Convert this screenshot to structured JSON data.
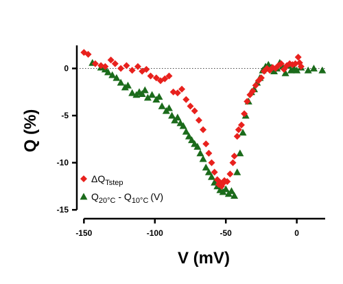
{
  "chart_data": {
    "type": "scatter",
    "xlabel": "V (mV)",
    "ylabel": "Q (%)",
    "xlim": [
      -155,
      20
    ],
    "ylim": [
      -15.5,
      2.3
    ],
    "xticks": [
      -150,
      -100,
      -50,
      0
    ],
    "yticks": [
      0,
      -5,
      -10,
      -15
    ],
    "zero_line": "dotted",
    "legend_position": "lower-left",
    "series": [
      {
        "name": "ΔQ",
        "name_sub": "Tstep",
        "color": "#e8211d",
        "marker": "diamond",
        "points": [
          [
            -150,
            1.7
          ],
          [
            -147,
            1.5
          ],
          [
            -142,
            0.5
          ],
          [
            -138,
            0.3
          ],
          [
            -135,
            0.2
          ],
          [
            -131,
            0.9
          ],
          [
            -128,
            0.5
          ],
          [
            -124,
            0.0
          ],
          [
            -120,
            0.3
          ],
          [
            -116,
            -0.2
          ],
          [
            -112,
            0.2
          ],
          [
            -109,
            -0.3
          ],
          [
            -106,
            -0.1
          ],
          [
            -103,
            -0.8
          ],
          [
            -99,
            -1.0
          ],
          [
            -96,
            -1.3
          ],
          [
            -93,
            -1.1
          ],
          [
            -90,
            -0.8
          ],
          [
            -87,
            -2.5
          ],
          [
            -84,
            -2.6
          ],
          [
            -81,
            -2.2
          ],
          [
            -78,
            -3.3
          ],
          [
            -75,
            -4.0
          ],
          [
            -72,
            -4.5
          ],
          [
            -69,
            -5.5
          ],
          [
            -66,
            -6.5
          ],
          [
            -64,
            -8.0
          ],
          [
            -62,
            -9.0
          ],
          [
            -60,
            -10.0
          ],
          [
            -58,
            -11.0
          ],
          [
            -56,
            -11.8
          ],
          [
            -55,
            -12.3
          ],
          [
            -54,
            -12.1
          ],
          [
            -53,
            -12.5
          ],
          [
            -52,
            -12.2
          ],
          [
            -51,
            -11.9
          ],
          [
            -49,
            -12.0
          ],
          [
            -47,
            -11.2
          ],
          [
            -45,
            -10.0
          ],
          [
            -44,
            -9.3
          ],
          [
            -42,
            -7.2
          ],
          [
            -41,
            -6.5
          ],
          [
            -39,
            -6.0
          ],
          [
            -37,
            -4.8
          ],
          [
            -35,
            -3.5
          ],
          [
            -33,
            -2.8
          ],
          [
            -31,
            -2.4
          ],
          [
            -29,
            -1.8
          ],
          [
            -27,
            -1.3
          ],
          [
            -25,
            -1.0
          ],
          [
            -23,
            -0.3
          ],
          [
            -21,
            0.0
          ],
          [
            -19,
            -0.2
          ],
          [
            -17,
            0.1
          ],
          [
            -15,
            0.0
          ],
          [
            -13,
            0.3
          ],
          [
            -11,
            0.5
          ],
          [
            -9,
            -0.1
          ],
          [
            -7,
            0.3
          ],
          [
            -5,
            0.5
          ],
          [
            -3,
            0.4
          ],
          [
            -1,
            0.5
          ],
          [
            1,
            1.2
          ],
          [
            2,
            0.6
          ],
          [
            3,
            0.2
          ]
        ]
      },
      {
        "name": "Q",
        "name_sub": "20°C",
        "name_mid": " - Q",
        "name_sub2": "10°C",
        "name_suffix": "(V)",
        "color": "#1b6b1b",
        "marker": "triangle",
        "points": [
          [
            -144,
            0.6
          ],
          [
            -138,
            0.1
          ],
          [
            -135,
            -0.1
          ],
          [
            -133,
            -0.4
          ],
          [
            -130,
            -0.7
          ],
          [
            -127,
            -1.0
          ],
          [
            -124,
            -1.5
          ],
          [
            -121,
            -2.0
          ],
          [
            -119,
            -1.8
          ],
          [
            -116,
            -2.6
          ],
          [
            -113,
            -2.8
          ],
          [
            -111,
            -2.5
          ],
          [
            -109,
            -2.7
          ],
          [
            -107,
            -2.3
          ],
          [
            -105,
            -3.1
          ],
          [
            -102,
            -2.8
          ],
          [
            -99,
            -3.3
          ],
          [
            -97,
            -3.0
          ],
          [
            -95,
            -4.0
          ],
          [
            -92,
            -4.5
          ],
          [
            -90,
            -4.2
          ],
          [
            -88,
            -5.0
          ],
          [
            -86,
            -5.5
          ],
          [
            -84,
            -5.2
          ],
          [
            -82,
            -5.8
          ],
          [
            -80,
            -6.1
          ],
          [
            -78,
            -6.7
          ],
          [
            -76,
            -7.2
          ],
          [
            -74,
            -7.6
          ],
          [
            -72,
            -8.0
          ],
          [
            -70,
            -8.3
          ],
          [
            -68,
            -9.0
          ],
          [
            -66,
            -9.6
          ],
          [
            -64,
            -10.5
          ],
          [
            -62,
            -11.0
          ],
          [
            -60,
            -11.5
          ],
          [
            -58,
            -12.1
          ],
          [
            -56,
            -12.5
          ],
          [
            -54,
            -12.9
          ],
          [
            -52,
            -13.1
          ],
          [
            -50,
            -12.8
          ],
          [
            -48,
            -13.3
          ],
          [
            -46,
            -13.0
          ],
          [
            -44,
            -13.5
          ],
          [
            -42,
            -11.0
          ],
          [
            -40,
            -9.0
          ],
          [
            -38,
            -6.8
          ],
          [
            -36,
            -5.0
          ],
          [
            -34,
            -3.5
          ],
          [
            -32,
            -2.5
          ],
          [
            -30,
            -2.2
          ],
          [
            -28,
            -1.5
          ],
          [
            -26,
            -1.0
          ],
          [
            -24,
            -0.2
          ],
          [
            -22,
            0.2
          ],
          [
            -20,
            0.4
          ],
          [
            -18,
            0.1
          ],
          [
            -16,
            -0.3
          ],
          [
            -14,
            0.0
          ],
          [
            -12,
            0.6
          ],
          [
            -10,
            0.2
          ],
          [
            -8,
            -0.5
          ],
          [
            -6,
            0.3
          ],
          [
            -4,
            -0.2
          ],
          [
            -2,
            0.0
          ],
          [
            0,
            -0.2
          ],
          [
            3,
            0.1
          ],
          [
            8,
            -0.2
          ],
          [
            12,
            0.0
          ],
          [
            18,
            -0.2
          ]
        ]
      }
    ]
  }
}
